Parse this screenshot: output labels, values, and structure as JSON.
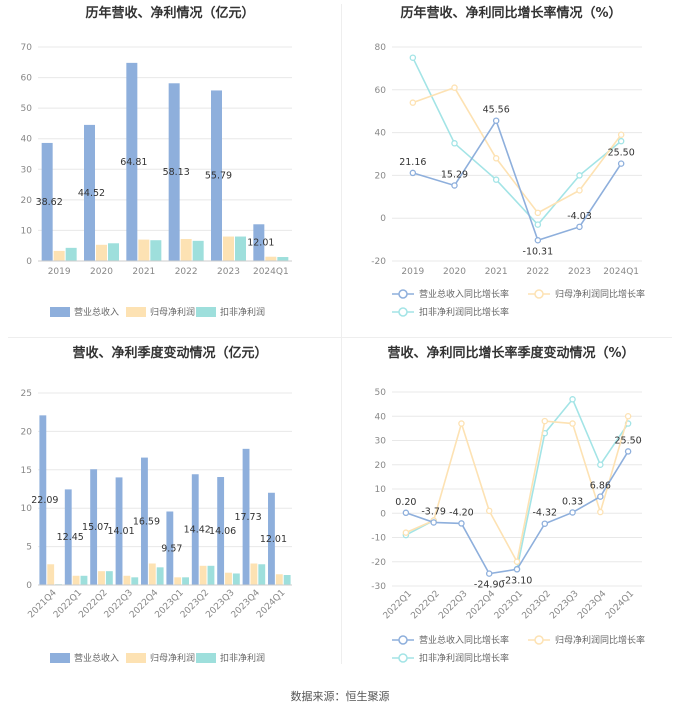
{
  "footer": "数据来源：恒生聚源",
  "colors": {
    "revenue": "#8eafdc",
    "net_profit": "#fde2b3",
    "deducted_profit": "#9edfdc",
    "revenue_line": "#8eafdc",
    "net_profit_line": "#fde2b3",
    "deducted_line": "#a3e4e6",
    "grid": "#e8e8e8",
    "axis_text": "#888888"
  },
  "chart_data": [
    {
      "id": "annual_bar",
      "type": "bar",
      "title": "历年营收、净利情况（亿元）",
      "categories": [
        "2019",
        "2020",
        "2021",
        "2022",
        "2023",
        "2024Q1"
      ],
      "series": [
        {
          "name": "营业总收入",
          "values": [
            38.62,
            44.52,
            64.81,
            58.13,
            55.79,
            12.01
          ],
          "labels": [
            "38.62",
            "44.52",
            "64.81",
            "58.13",
            "55.79",
            "12.01"
          ]
        },
        {
          "name": "归母净利润",
          "values": [
            3.3,
            5.3,
            7.0,
            7.2,
            8.0,
            1.4
          ]
        },
        {
          "name": "扣非净利润",
          "values": [
            4.3,
            5.8,
            6.8,
            6.6,
            8.0,
            1.3
          ]
        }
      ],
      "y_ticks": [
        "0",
        "10",
        "20",
        "30",
        "40",
        "50",
        "60",
        "70"
      ],
      "ylim": [
        0,
        70
      ],
      "grid": true,
      "legend": "bottom"
    },
    {
      "id": "annual_line",
      "type": "line",
      "title": "历年营收、净利同比增长率情况（%）",
      "categories": [
        "2019",
        "2020",
        "2021",
        "2022",
        "2023",
        "2024Q1"
      ],
      "series": [
        {
          "name": "营业总收入同比增长率",
          "values": [
            21.16,
            15.29,
            45.56,
            -10.31,
            -4.03,
            25.5
          ],
          "labels": [
            "21.16",
            "15.29",
            "45.56",
            "-10.31",
            "-4.03",
            "25.50"
          ]
        },
        {
          "name": "归母净利润同比增长率",
          "values": [
            54,
            61,
            28,
            2.5,
            13,
            39
          ]
        },
        {
          "name": "扣非净利润同比增长率",
          "values": [
            75,
            35,
            18,
            -3,
            20,
            36
          ]
        }
      ],
      "y_ticks": [
        "-20",
        "0",
        "20",
        "40",
        "60",
        "80"
      ],
      "ylim": [
        -20,
        80
      ],
      "grid": true,
      "legend": "bottom"
    },
    {
      "id": "quarter_bar",
      "type": "bar",
      "title": "营收、净利季度变动情况（亿元）",
      "categories": [
        "2021Q4",
        "2022Q1",
        "2022Q2",
        "2022Q3",
        "2022Q4",
        "2023Q1",
        "2023Q2",
        "2023Q3",
        "2023Q4",
        "2024Q1"
      ],
      "series": [
        {
          "name": "营业总收入",
          "values": [
            22.09,
            12.45,
            15.07,
            14.01,
            16.59,
            9.57,
            14.42,
            14.06,
            17.73,
            12.01
          ],
          "labels": [
            "22.09",
            "12.45",
            "15.07",
            "14.01",
            "16.59",
            "9.57",
            "14.42",
            "14.06",
            "17.73",
            "12.01"
          ]
        },
        {
          "name": "归母净利润",
          "values": [
            2.7,
            1.2,
            1.8,
            1.2,
            2.8,
            1.0,
            2.5,
            1.6,
            2.8,
            1.4
          ]
        },
        {
          "name": "扣非净利润",
          "values": [
            0.1,
            1.2,
            1.8,
            1.0,
            2.3,
            1.0,
            2.5,
            1.5,
            2.7,
            1.3
          ]
        }
      ],
      "y_ticks": [
        "0",
        "5",
        "10",
        "15",
        "20",
        "25"
      ],
      "ylim": [
        0,
        25
      ],
      "grid": true,
      "legend": "bottom"
    },
    {
      "id": "quarter_line",
      "type": "line",
      "title": "营收、净利同比增长率季度变动情况（%）",
      "categories": [
        "2022Q1",
        "2022Q2",
        "2022Q3",
        "2022Q4",
        "2023Q1",
        "2023Q2",
        "2023Q3",
        "2023Q4",
        "2024Q1"
      ],
      "series": [
        {
          "name": "营业总收入同比增长率",
          "values": [
            0.2,
            -3.79,
            -4.2,
            -24.9,
            -23.1,
            -4.32,
            0.33,
            6.86,
            25.5
          ],
          "labels": [
            "0.20",
            "-3.79",
            "-4.20",
            "-24.90",
            "-23.10",
            "-4.32",
            "0.33",
            "6.86",
            "25.50"
          ]
        },
        {
          "name": "归母净利润同比增长率",
          "values": [
            -8,
            -3,
            37,
            1,
            -20,
            38,
            37,
            0.5,
            40
          ]
        },
        {
          "name": "扣非净利润同比增长率",
          "values": [
            -9,
            -3,
            null,
            null,
            -23,
            33,
            47,
            20,
            37
          ]
        }
      ],
      "y_ticks": [
        "-30",
        "-20",
        "-10",
        "0",
        "10",
        "20",
        "30",
        "40",
        "50"
      ],
      "ylim": [
        -30,
        50
      ],
      "grid": true,
      "legend": "bottom"
    }
  ]
}
